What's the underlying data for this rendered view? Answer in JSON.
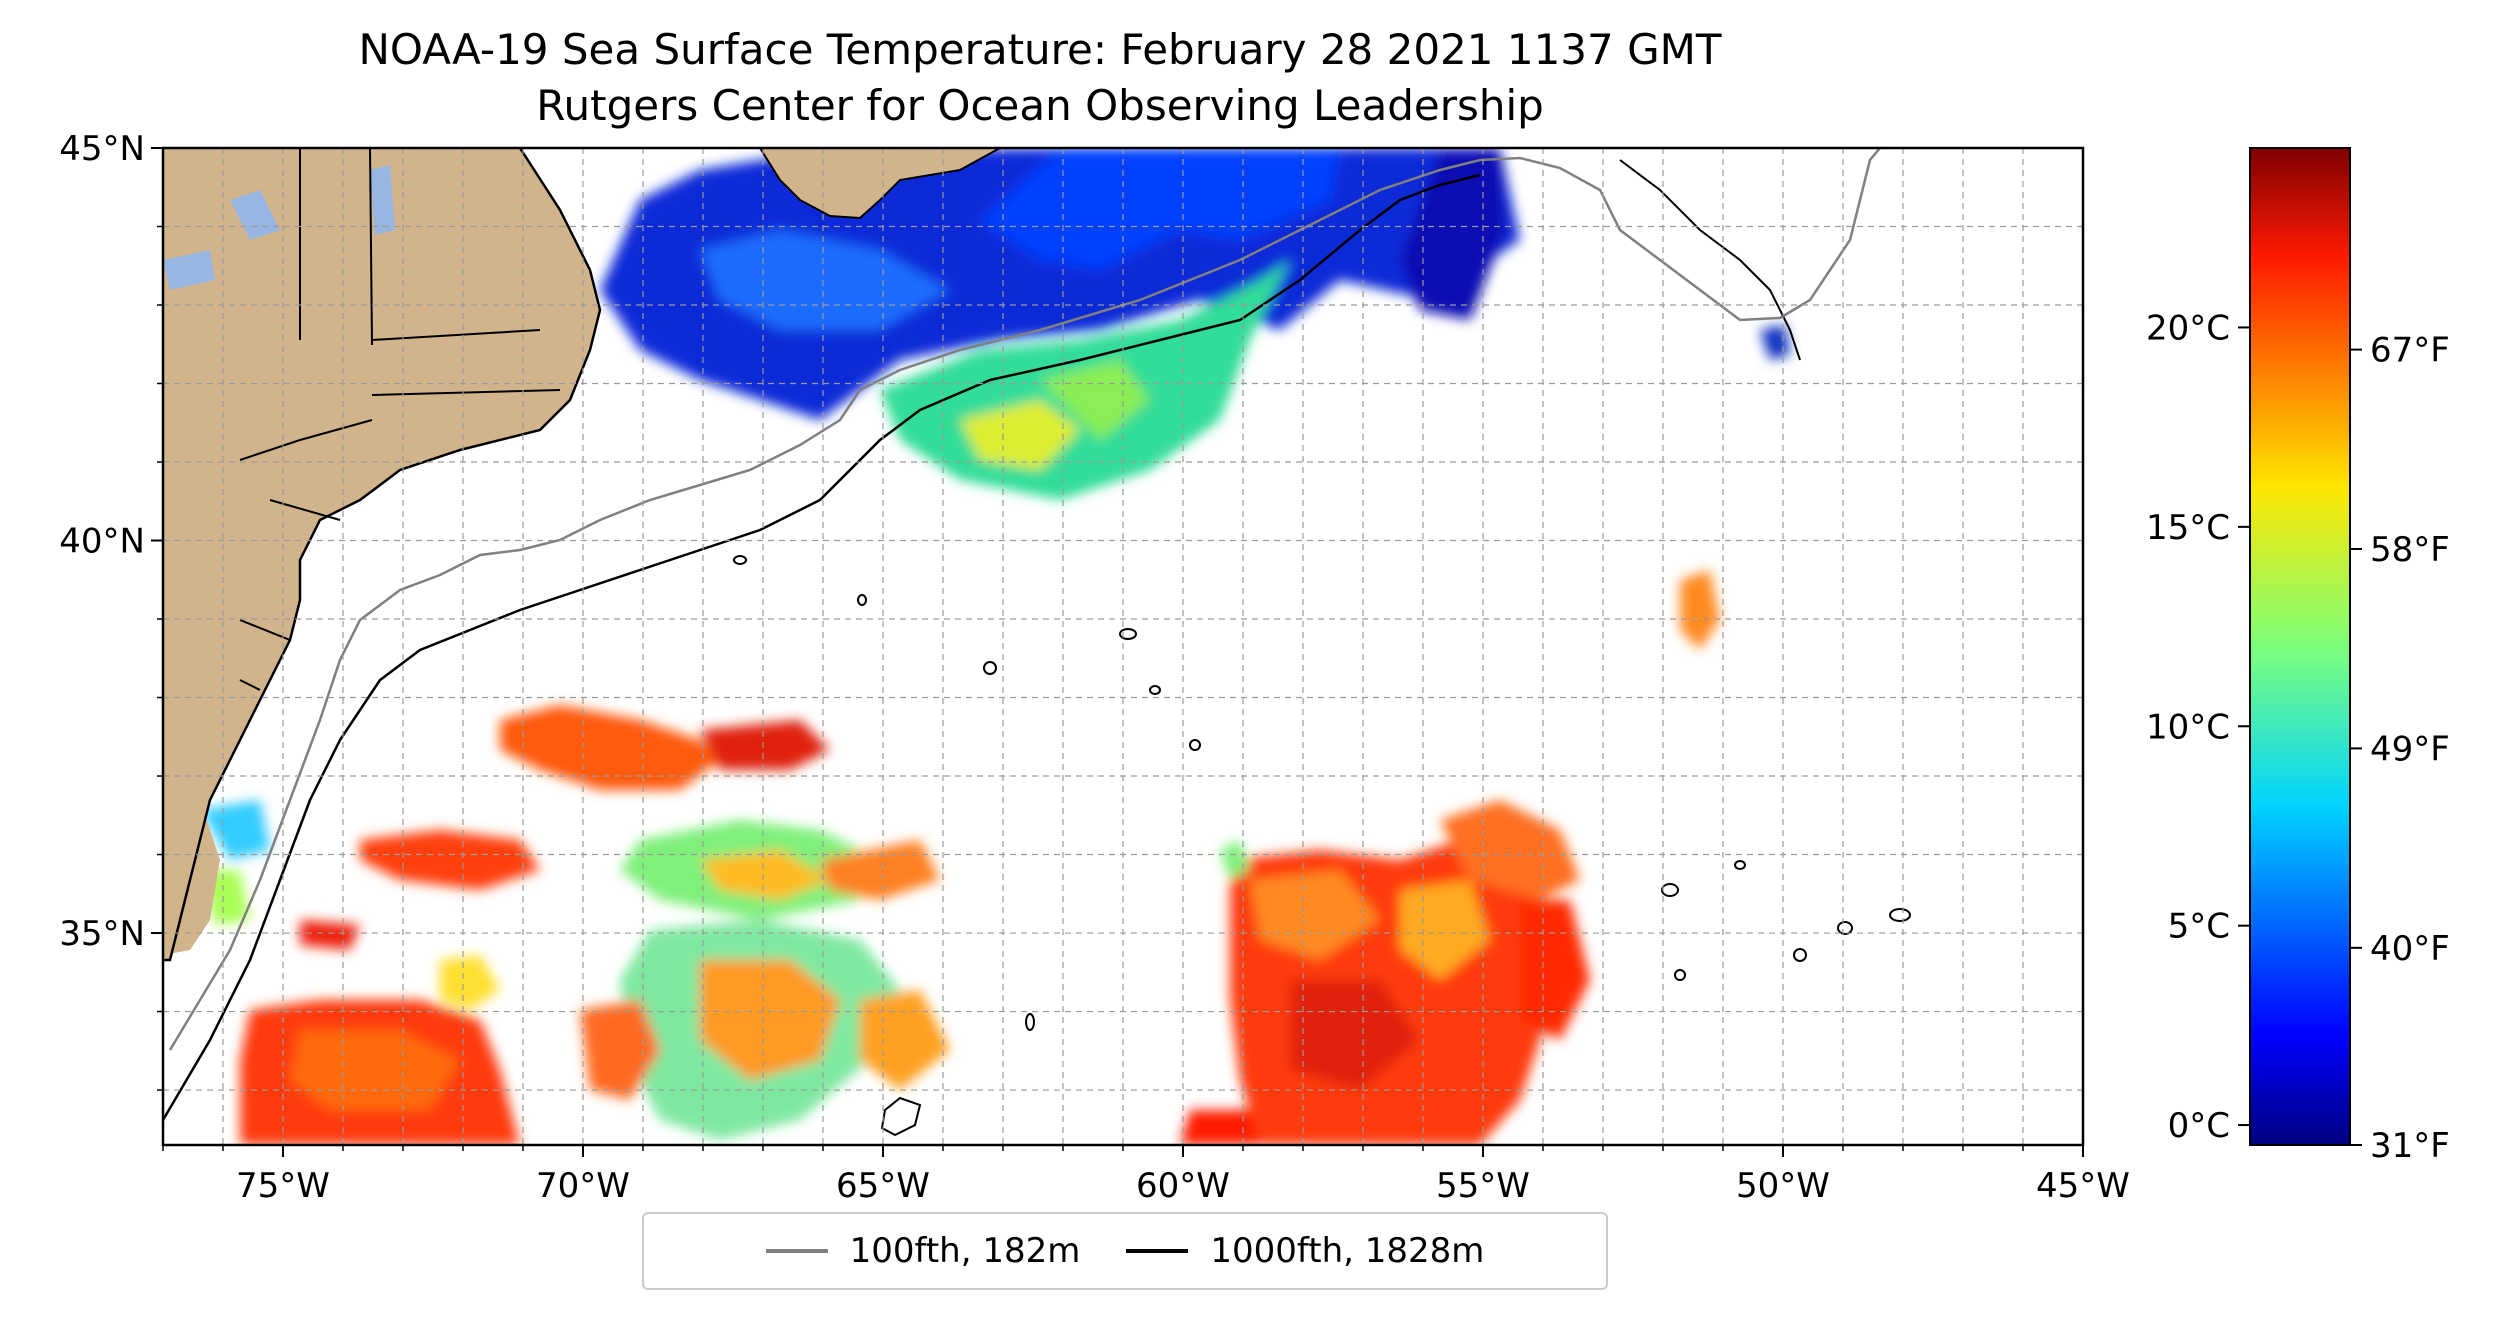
{
  "title": {
    "line1": "NOAA-19 Sea Surface Temperature: February 28 2021 1137 GMT",
    "line2": "Rutgers Center for Ocean Observing Leadership"
  },
  "map": {
    "lon_range": [
      -77,
      -45
    ],
    "lat_range": [
      32.3,
      45
    ],
    "lon_ticks": [
      {
        "lon": -75,
        "label": "75°W"
      },
      {
        "lon": -70,
        "label": "70°W"
      },
      {
        "lon": -65,
        "label": "65°W"
      },
      {
        "lon": -60,
        "label": "60°W"
      },
      {
        "lon": -55,
        "label": "55°W"
      },
      {
        "lon": -50,
        "label": "50°W"
      },
      {
        "lon": -45,
        "label": "45°W"
      }
    ],
    "lat_ticks": [
      {
        "lat": 45,
        "label": "45°N"
      },
      {
        "lat": 40,
        "label": "40°N"
      },
      {
        "lat": 35,
        "label": "35°N"
      }
    ],
    "gridlines": true,
    "land_color": "#d2b48c",
    "lake_color": "#97b6e1",
    "bathymetry": [
      {
        "label": "100fth, 182m",
        "color": "#808080"
      },
      {
        "label": "1000fth, 1828m",
        "color": "#000000"
      }
    ],
    "legend_position": "bottom-center"
  },
  "colorbar": {
    "colormap": "jet",
    "range_c": [
      -0.5,
      24.5
    ],
    "celsius_ticks": [
      {
        "value": 0,
        "label": "0°C"
      },
      {
        "value": 5,
        "label": "5°C"
      },
      {
        "value": 10,
        "label": "10°C"
      },
      {
        "value": 15,
        "label": "15°C"
      },
      {
        "value": 20,
        "label": "20°C"
      }
    ],
    "fahrenheit_ticks": [
      {
        "value": 31,
        "label": "31°F"
      },
      {
        "value": 40,
        "label": "40°F"
      },
      {
        "value": 49,
        "label": "49°F"
      },
      {
        "value": 58,
        "label": "58°F"
      },
      {
        "value": 67,
        "label": "67°F"
      }
    ]
  }
}
